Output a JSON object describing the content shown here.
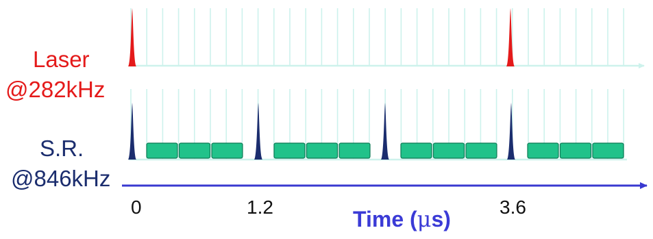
{
  "laser": {
    "label_line1": "Laser",
    "label_line2": "@282kHz",
    "color": "#e41a1a"
  },
  "sr": {
    "label_line1": "S.R.",
    "label_line2": "@846kHz",
    "color": "#1b2d6e"
  },
  "axis": {
    "title": "Time (μs)",
    "title_color": "#3b3bd6",
    "line_color": "#3939d0",
    "ticks": [
      "0",
      "1.2",
      "3.6"
    ]
  },
  "colors": {
    "grid": "#cdf2ec",
    "bucket_fill": "#21c28a",
    "bucket_stroke": "#0e7a55"
  }
}
